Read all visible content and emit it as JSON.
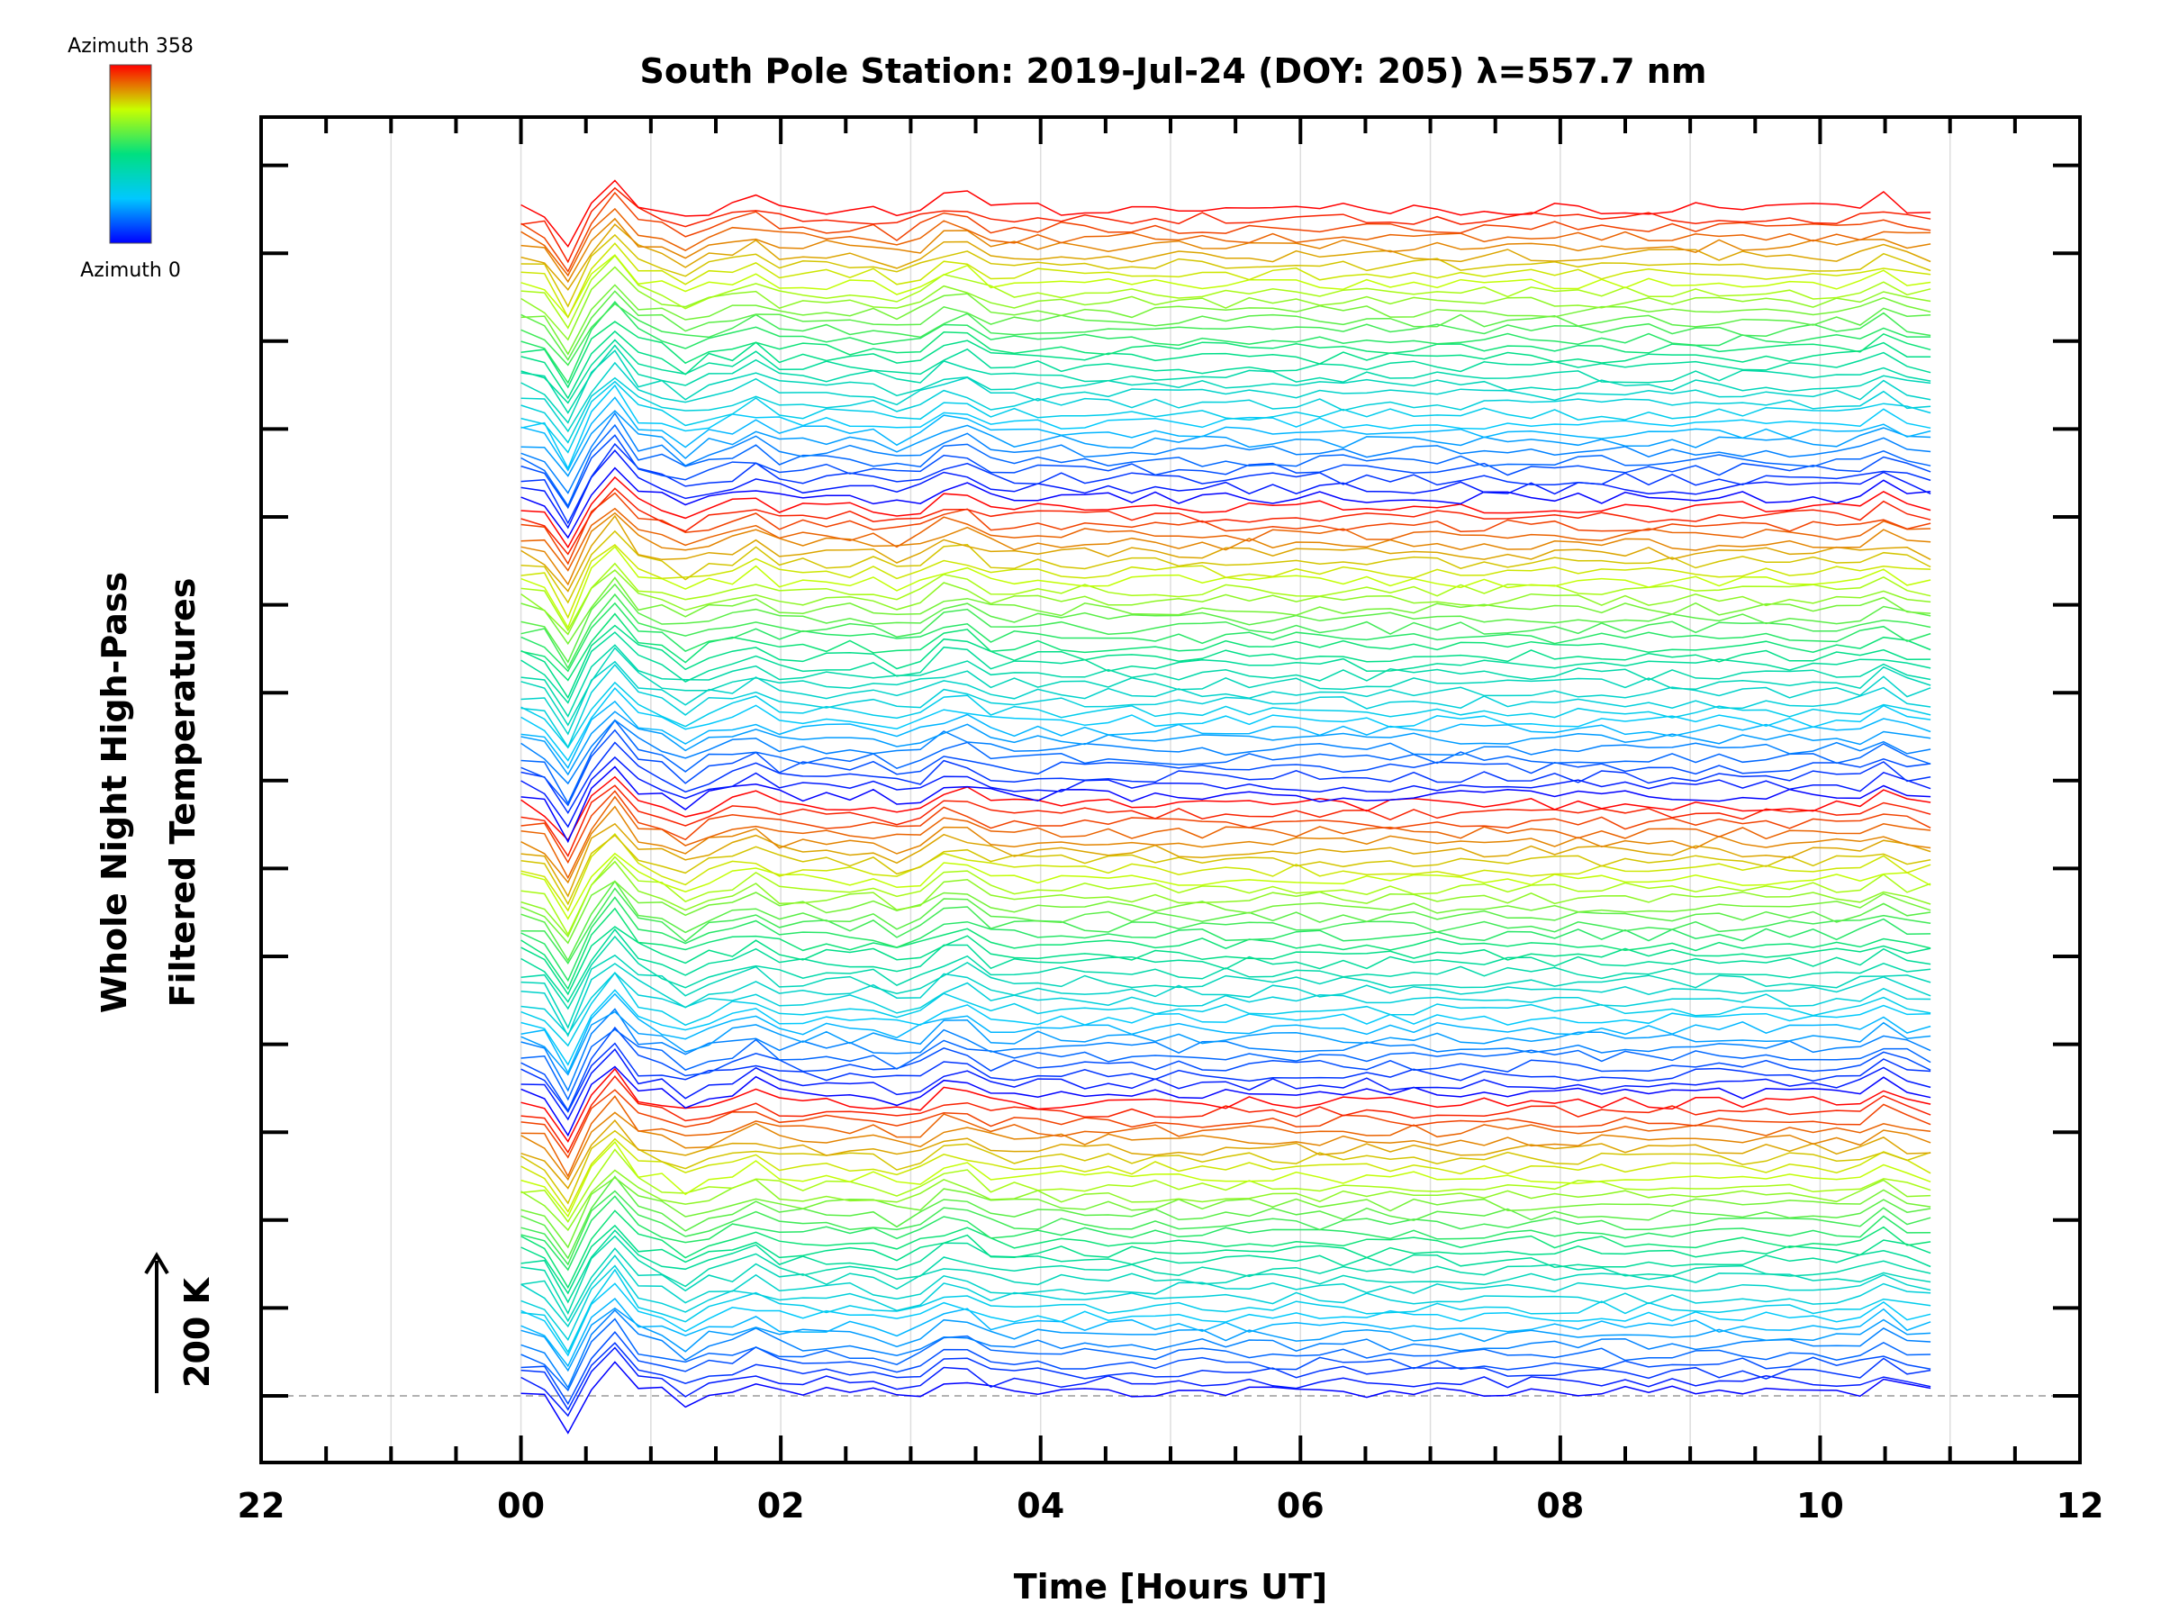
{
  "chart_data": {
    "type": "line",
    "title": "South Pole Station: 2019-Jul-24 (DOY: 205) λ=557.7 nm",
    "xlabel": "Time [Hours UT]",
    "ylabel_line1": "Whole Night High-Pass",
    "ylabel_line2": "Filtered Temperatures",
    "x_ticks": [
      "22",
      "00",
      "02",
      "04",
      "06",
      "08",
      "10",
      "12"
    ],
    "xlim_hours": [
      -2,
      12
    ],
    "data_time_range_hours": [
      0,
      10.85
    ],
    "scale_label": "200 K",
    "colorbar": {
      "top_label": "Azimuth 358",
      "bottom_label": "Azimuth 0"
    },
    "series_count": 128,
    "azimuth_range": [
      0,
      358
    ],
    "description_colors": [
      "#0000ff",
      "#00bfff",
      "#00ff7f",
      "#bfff00",
      "#ff0000"
    ],
    "reference_line": "dashed baseline at 0 K offset"
  }
}
